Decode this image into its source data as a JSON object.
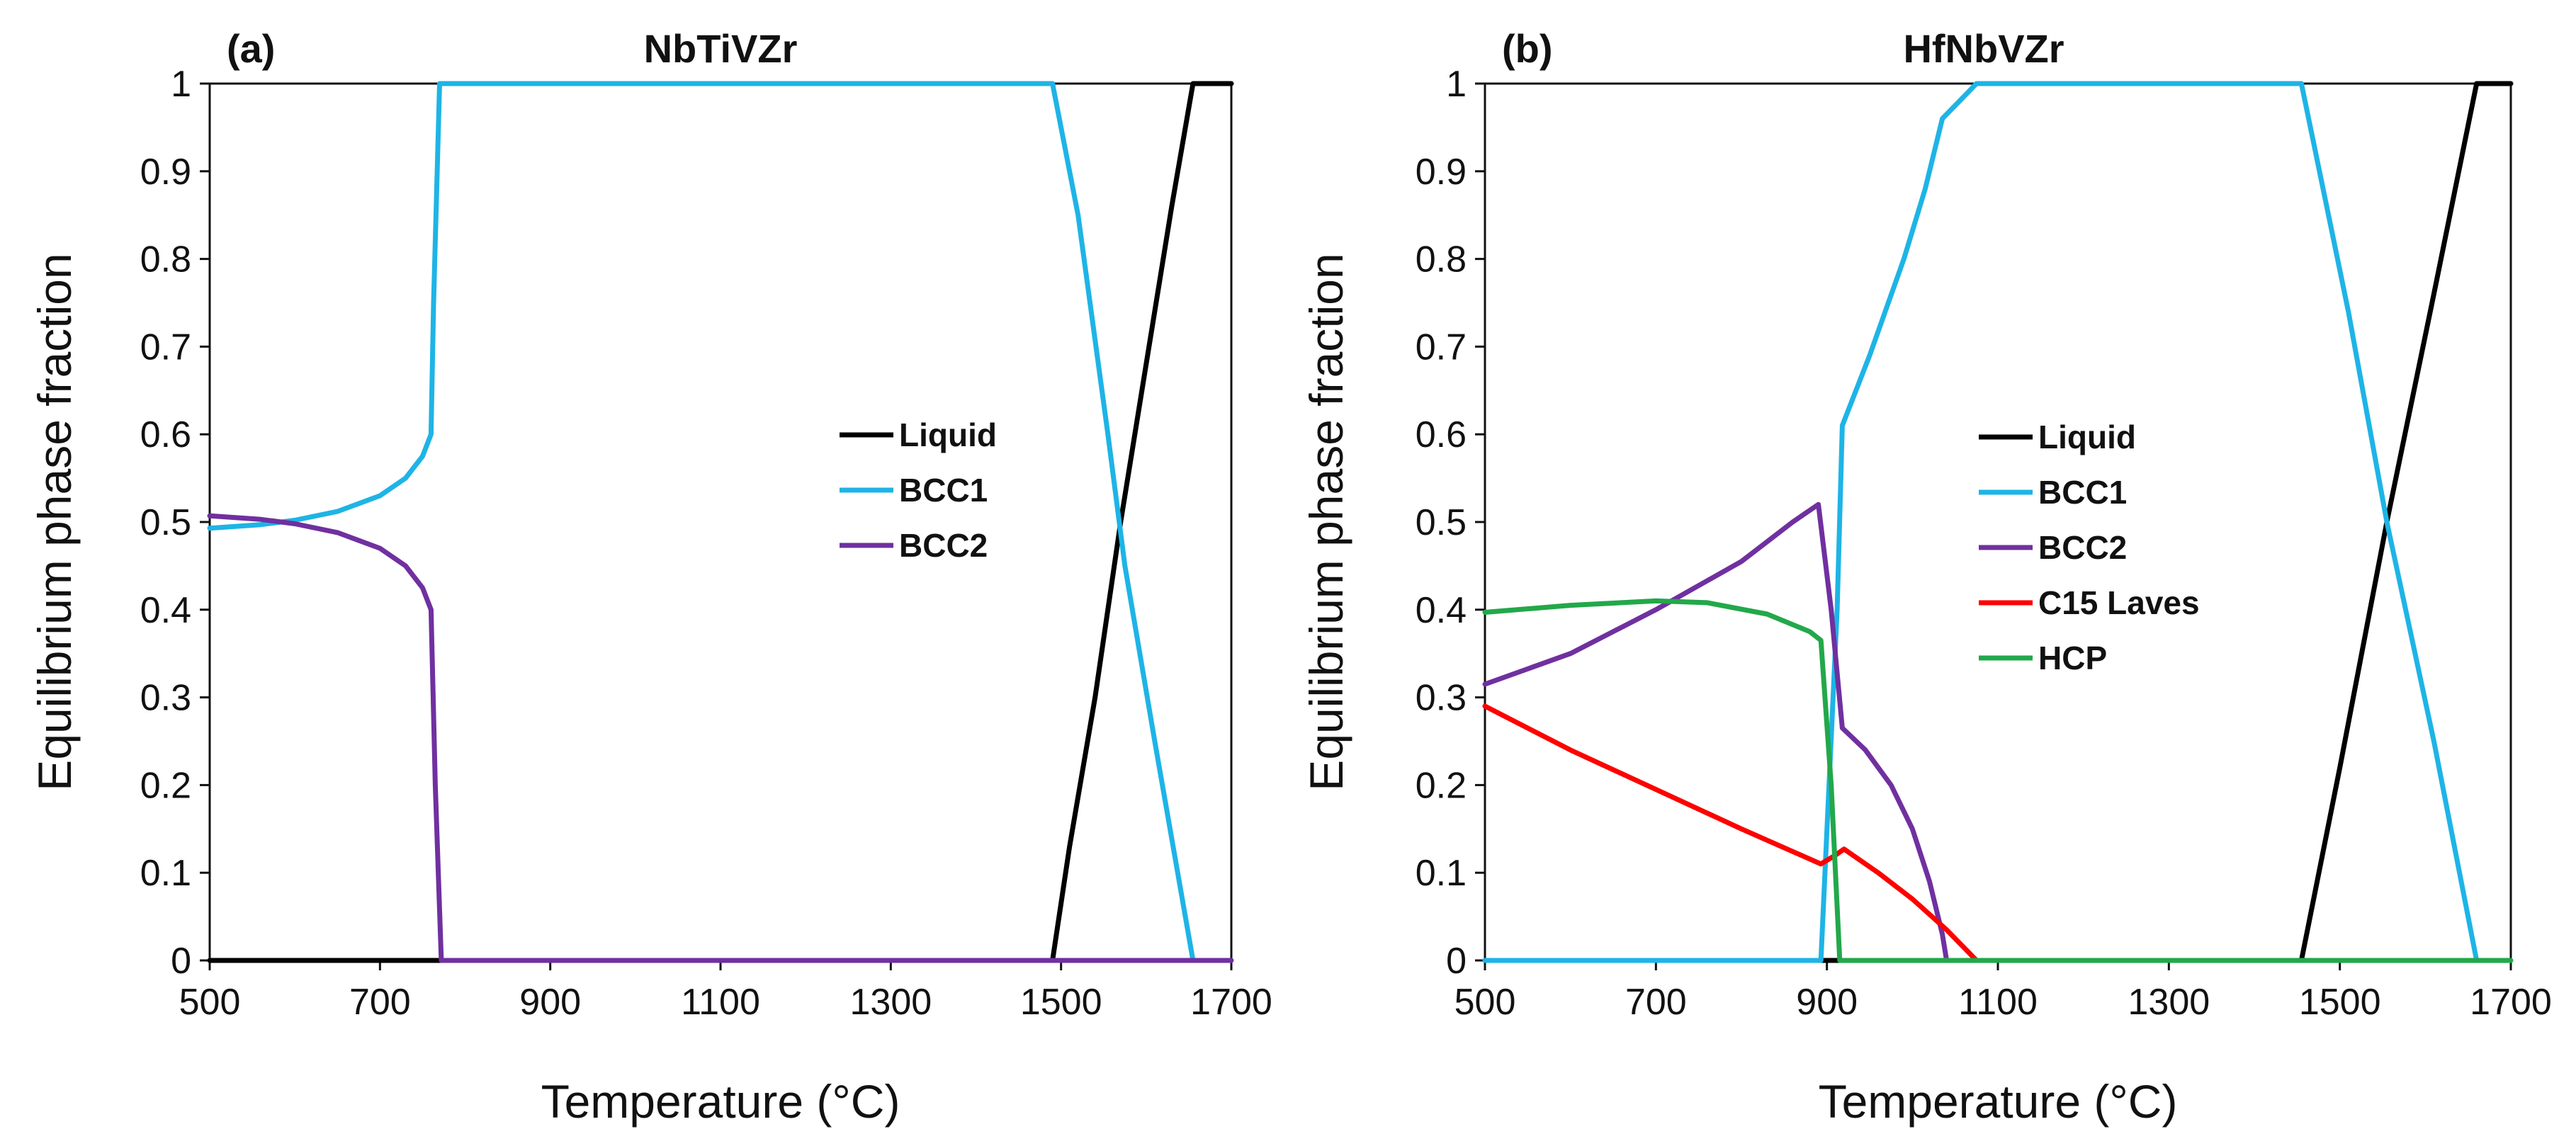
{
  "chart_data": [
    {
      "type": "line",
      "panel_label": "(a)",
      "title": "NbTiVZr",
      "xlabel": "Temperature (°C)",
      "ylabel": "Equilibrium phase fraction",
      "xlim": [
        500,
        1700
      ],
      "ylim": [
        0,
        1
      ],
      "x_ticks": [
        "500",
        "700",
        "900",
        "1100",
        "1300",
        "1500",
        "1700"
      ],
      "y_ticks": [
        "0",
        "0.1",
        "0.2",
        "0.3",
        "0.4",
        "0.5",
        "0.6",
        "0.7",
        "0.8",
        "0.9",
        "1"
      ],
      "grid": false,
      "legend_position": "center-right",
      "series": [
        {
          "name": "Liquid",
          "color": "#000000",
          "points": [
            [
              500,
              0
            ],
            [
              1490,
              0
            ],
            [
              1510,
              0.13
            ],
            [
              1540,
              0.3
            ],
            [
              1570,
              0.5
            ],
            [
              1600,
              0.68
            ],
            [
              1630,
              0.86
            ],
            [
              1655,
              1
            ],
            [
              1700,
              1
            ]
          ]
        },
        {
          "name": "BCC1",
          "color": "#1EB4E6",
          "points": [
            [
              500,
              0.493
            ],
            [
              560,
              0.497
            ],
            [
              600,
              0.502
            ],
            [
              650,
              0.512
            ],
            [
              700,
              0.53
            ],
            [
              730,
              0.55
            ],
            [
              750,
              0.575
            ],
            [
              760,
              0.6
            ],
            [
              763,
              0.75
            ],
            [
              770,
              1
            ],
            [
              1490,
              1
            ],
            [
              1520,
              0.85
            ],
            [
              1555,
              0.6
            ],
            [
              1575,
              0.45
            ],
            [
              1610,
              0.25
            ],
            [
              1655,
              0
            ]
          ]
        },
        {
          "name": "BCC2",
          "color": "#7030A0",
          "points": [
            [
              500,
              0.507
            ],
            [
              560,
              0.503
            ],
            [
              600,
              0.498
            ],
            [
              650,
              0.488
            ],
            [
              700,
              0.47
            ],
            [
              730,
              0.45
            ],
            [
              750,
              0.425
            ],
            [
              760,
              0.4
            ],
            [
              765,
              0.2
            ],
            [
              772,
              0
            ],
            [
              1700,
              0
            ]
          ]
        }
      ]
    },
    {
      "type": "line",
      "panel_label": "(b)",
      "title": "HfNbVZr",
      "xlabel": "Temperature (°C)",
      "ylabel": "Equilibrium phase fraction",
      "xlim": [
        500,
        1700
      ],
      "ylim": [
        0,
        1
      ],
      "x_ticks": [
        "500",
        "700",
        "900",
        "1100",
        "1300",
        "1500",
        "1700"
      ],
      "y_ticks": [
        "0",
        "0.1",
        "0.2",
        "0.3",
        "0.4",
        "0.5",
        "0.6",
        "0.7",
        "0.8",
        "0.9",
        "1"
      ],
      "grid": false,
      "legend_position": "center-right",
      "series": [
        {
          "name": "Liquid",
          "color": "#000000",
          "points": [
            [
              500,
              0
            ],
            [
              1455,
              0
            ],
            [
              1500,
              0.22
            ],
            [
              1555,
              0.5
            ],
            [
              1610,
              0.76
            ],
            [
              1660,
              1
            ],
            [
              1700,
              1
            ]
          ]
        },
        {
          "name": "BCC1",
          "color": "#1EB4E6",
          "points": [
            [
              500,
              0
            ],
            [
              893,
              0
            ],
            [
              912,
              0.4
            ],
            [
              918,
              0.61
            ],
            [
              950,
              0.69
            ],
            [
              990,
              0.8
            ],
            [
              1015,
              0.88
            ],
            [
              1035,
              0.96
            ],
            [
              1050,
              0.975
            ],
            [
              1075,
              1
            ],
            [
              1455,
              1
            ],
            [
              1510,
              0.74
            ],
            [
              1555,
              0.5
            ],
            [
              1610,
              0.25
            ],
            [
              1660,
              0
            ]
          ]
        },
        {
          "name": "BCC2",
          "color": "#7030A0",
          "points": [
            [
              500,
              0.315
            ],
            [
              600,
              0.35
            ],
            [
              700,
              0.4
            ],
            [
              800,
              0.455
            ],
            [
              860,
              0.5
            ],
            [
              890,
              0.52
            ],
            [
              905,
              0.4
            ],
            [
              918,
              0.265
            ],
            [
              945,
              0.24
            ],
            [
              975,
              0.2
            ],
            [
              1000,
              0.15
            ],
            [
              1020,
              0.09
            ],
            [
              1035,
              0.03
            ],
            [
              1040,
              0
            ]
          ]
        },
        {
          "name": "C15 Laves",
          "color": "#FF0000",
          "points": [
            [
              500,
              0.29
            ],
            [
              600,
              0.24
            ],
            [
              700,
              0.195
            ],
            [
              800,
              0.15
            ],
            [
              893,
              0.11
            ],
            [
              910,
              0.12
            ],
            [
              920,
              0.127
            ],
            [
              960,
              0.1
            ],
            [
              1000,
              0.07
            ],
            [
              1040,
              0.035
            ],
            [
              1075,
              0
            ]
          ]
        },
        {
          "name": "HCP",
          "color": "#22A84A",
          "points": [
            [
              500,
              0.397
            ],
            [
              600,
              0.405
            ],
            [
              700,
              0.41
            ],
            [
              760,
              0.408
            ],
            [
              830,
              0.395
            ],
            [
              880,
              0.375
            ],
            [
              893,
              0.365
            ],
            [
              905,
              0.2
            ],
            [
              915,
              0
            ],
            [
              1700,
              0
            ]
          ]
        }
      ]
    }
  ]
}
